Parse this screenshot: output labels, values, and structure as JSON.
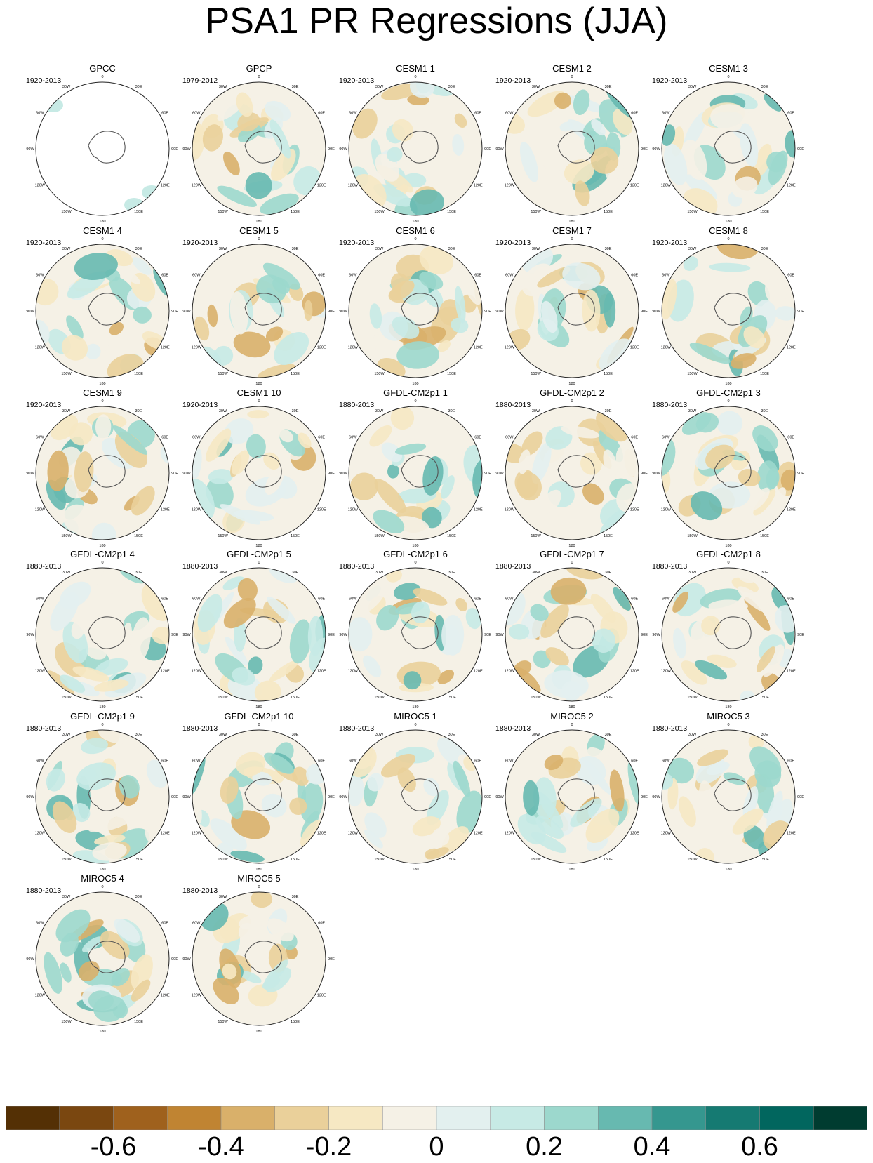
{
  "title": "PSA1 PR Regressions (JJA)",
  "meridian_labels": [
    "0",
    "30E",
    "60E",
    "90E",
    "120E",
    "150E",
    "180",
    "150W",
    "120W",
    "90W",
    "60W",
    "30W"
  ],
  "chart_data": {
    "type": "heatmap",
    "projection": "south polar stereographic",
    "panels": [
      {
        "name": "GPCC",
        "period": "1920-2013"
      },
      {
        "name": "GPCP",
        "period": "1979-2012"
      },
      {
        "name": "CESM1 1",
        "period": "1920-2013"
      },
      {
        "name": "CESM1 2",
        "period": "1920-2013"
      },
      {
        "name": "CESM1 3",
        "period": "1920-2013"
      },
      {
        "name": "CESM1 4",
        "period": "1920-2013"
      },
      {
        "name": "CESM1 5",
        "period": "1920-2013"
      },
      {
        "name": "CESM1 6",
        "period": "1920-2013"
      },
      {
        "name": "CESM1 7",
        "period": "1920-2013"
      },
      {
        "name": "CESM1 8",
        "period": "1920-2013"
      },
      {
        "name": "CESM1 9",
        "period": "1920-2013"
      },
      {
        "name": "CESM1 10",
        "period": "1920-2013"
      },
      {
        "name": "GFDL-CM2p1 1",
        "period": "1880-2013"
      },
      {
        "name": "GFDL-CM2p1 2",
        "period": "1880-2013"
      },
      {
        "name": "GFDL-CM2p1 3",
        "period": "1880-2013"
      },
      {
        "name": "GFDL-CM2p1 4",
        "period": "1880-2013"
      },
      {
        "name": "GFDL-CM2p1 5",
        "period": "1880-2013"
      },
      {
        "name": "GFDL-CM2p1 6",
        "period": "1880-2013"
      },
      {
        "name": "GFDL-CM2p1 7",
        "period": "1880-2013"
      },
      {
        "name": "GFDL-CM2p1 8",
        "period": "1880-2013"
      },
      {
        "name": "GFDL-CM2p1 9",
        "period": "1880-2013"
      },
      {
        "name": "GFDL-CM2p1 10",
        "period": "1880-2013"
      },
      {
        "name": "MIROC5 1",
        "period": "1880-2013"
      },
      {
        "name": "MIROC5 2",
        "period": "1880-2013"
      },
      {
        "name": "MIROC5 3",
        "period": "1880-2013"
      },
      {
        "name": "MIROC5 4",
        "period": "1880-2013"
      },
      {
        "name": "MIROC5 5",
        "period": "1880-2013"
      }
    ],
    "colorbar": {
      "range": [
        -0.8,
        0.8
      ],
      "interval": 0.1,
      "tick_values": [
        -0.6,
        -0.4,
        -0.2,
        0,
        0.2,
        0.4,
        0.6
      ],
      "tick_labels": [
        "-0.6",
        "-0.4",
        "-0.2",
        "0",
        "0.2",
        "0.4",
        "0.6"
      ],
      "colors": [
        "#543005",
        "#7a4710",
        "#9f611d",
        "#c08432",
        "#d9b06a",
        "#ead09a",
        "#f6e8c3",
        "#f5f1e6",
        "#e3f0ef",
        "#c7eae5",
        "#9cd8cd",
        "#67b9b0",
        "#35978f",
        "#157a72",
        "#01665e",
        "#003c30"
      ]
    }
  }
}
